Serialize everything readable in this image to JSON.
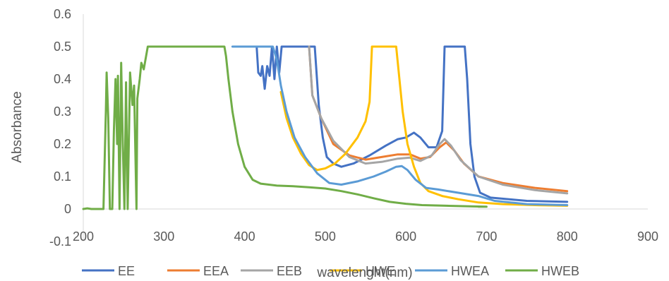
{
  "chart_data": {
    "type": "line",
    "xlabel": "wavelenght(nm)",
    "ylabel": "Absorbance",
    "xlim": [
      200,
      900
    ],
    "ylim": [
      -0.1,
      0.6
    ],
    "x_ticks": [
      200,
      300,
      400,
      500,
      600,
      700,
      800,
      900
    ],
    "y_ticks": [
      -0.1,
      0,
      0.1,
      0.2,
      0.3,
      0.4,
      0.5,
      0.6
    ],
    "grid": false,
    "legend_position": "bottom",
    "series": [
      {
        "name": "EE",
        "color": "#4472C4",
        "points": [
          [
            415,
            0.5
          ],
          [
            417,
            0.42
          ],
          [
            420,
            0.41
          ],
          [
            422,
            0.44
          ],
          [
            425,
            0.37
          ],
          [
            428,
            0.44
          ],
          [
            431,
            0.41
          ],
          [
            434,
            0.5
          ],
          [
            437,
            0.4
          ],
          [
            440,
            0.5
          ],
          [
            443,
            0.42
          ],
          [
            446,
            0.5
          ],
          [
            480,
            0.5
          ],
          [
            487,
            0.5
          ],
          [
            492,
            0.32
          ],
          [
            497,
            0.22
          ],
          [
            502,
            0.16
          ],
          [
            510,
            0.14
          ],
          [
            520,
            0.13
          ],
          [
            535,
            0.14
          ],
          [
            555,
            0.165
          ],
          [
            575,
            0.195
          ],
          [
            590,
            0.215
          ],
          [
            600,
            0.22
          ],
          [
            610,
            0.235
          ],
          [
            618,
            0.22
          ],
          [
            628,
            0.19
          ],
          [
            638,
            0.19
          ],
          [
            645,
            0.24
          ],
          [
            648,
            0.5
          ],
          [
            673,
            0.5
          ],
          [
            676,
            0.4
          ],
          [
            680,
            0.2
          ],
          [
            685,
            0.1
          ],
          [
            692,
            0.05
          ],
          [
            705,
            0.035
          ],
          [
            750,
            0.025
          ],
          [
            800,
            0.022
          ]
        ]
      },
      {
        "name": "EEA",
        "color": "#ED7D31",
        "points": [
          [
            480,
            0.5
          ],
          [
            484,
            0.35
          ],
          [
            495,
            0.28
          ],
          [
            510,
            0.2
          ],
          [
            530,
            0.165
          ],
          [
            550,
            0.152
          ],
          [
            570,
            0.16
          ],
          [
            590,
            0.168
          ],
          [
            605,
            0.168
          ],
          [
            618,
            0.155
          ],
          [
            630,
            0.16
          ],
          [
            642,
            0.19
          ],
          [
            650,
            0.205
          ],
          [
            660,
            0.18
          ],
          [
            672,
            0.14
          ],
          [
            690,
            0.1
          ],
          [
            720,
            0.08
          ],
          [
            760,
            0.065
          ],
          [
            800,
            0.055
          ]
        ]
      },
      {
        "name": "EEB",
        "color": "#A5A5A5",
        "points": [
          [
            480,
            0.5
          ],
          [
            484,
            0.35
          ],
          [
            495,
            0.28
          ],
          [
            510,
            0.21
          ],
          [
            530,
            0.16
          ],
          [
            550,
            0.14
          ],
          [
            570,
            0.145
          ],
          [
            590,
            0.155
          ],
          [
            605,
            0.158
          ],
          [
            618,
            0.148
          ],
          [
            632,
            0.165
          ],
          [
            642,
            0.2
          ],
          [
            648,
            0.215
          ],
          [
            656,
            0.195
          ],
          [
            668,
            0.15
          ],
          [
            690,
            0.1
          ],
          [
            720,
            0.075
          ],
          [
            760,
            0.058
          ],
          [
            800,
            0.048
          ]
        ]
      },
      {
        "name": "HWE",
        "color": "#FFC000",
        "points": [
          [
            445,
            0.36
          ],
          [
            452,
            0.28
          ],
          [
            460,
            0.22
          ],
          [
            470,
            0.17
          ],
          [
            480,
            0.135
          ],
          [
            490,
            0.12
          ],
          [
            500,
            0.125
          ],
          [
            512,
            0.14
          ],
          [
            525,
            0.17
          ],
          [
            540,
            0.22
          ],
          [
            550,
            0.27
          ],
          [
            555,
            0.33
          ],
          [
            558,
            0.5
          ],
          [
            583,
            0.5
          ],
          [
            588,
            0.5
          ],
          [
            592,
            0.4
          ],
          [
            596,
            0.3
          ],
          [
            602,
            0.2
          ],
          [
            610,
            0.13
          ],
          [
            618,
            0.08
          ],
          [
            628,
            0.055
          ],
          [
            645,
            0.04
          ],
          [
            665,
            0.03
          ],
          [
            690,
            0.02
          ],
          [
            720,
            0.015
          ],
          [
            760,
            0.012
          ],
          [
            800,
            0.01
          ]
        ]
      },
      {
        "name": "HWEA",
        "color": "#5B9BD5",
        "points": [
          [
            385,
            0.5
          ],
          [
            435,
            0.5
          ],
          [
            440,
            0.46
          ],
          [
            445,
            0.38
          ],
          [
            452,
            0.3
          ],
          [
            462,
            0.22
          ],
          [
            475,
            0.16
          ],
          [
            490,
            0.11
          ],
          [
            505,
            0.08
          ],
          [
            520,
            0.075
          ],
          [
            540,
            0.085
          ],
          [
            560,
            0.1
          ],
          [
            575,
            0.115
          ],
          [
            588,
            0.13
          ],
          [
            595,
            0.132
          ],
          [
            602,
            0.12
          ],
          [
            612,
            0.09
          ],
          [
            625,
            0.065
          ],
          [
            640,
            0.06
          ],
          [
            665,
            0.05
          ],
          [
            690,
            0.04
          ],
          [
            710,
            0.025
          ],
          [
            750,
            0.015
          ],
          [
            800,
            0.012
          ]
        ]
      },
      {
        "name": "HWEB",
        "color": "#70AD47",
        "points": [
          [
            200,
            0.0
          ],
          [
            205,
            0.002
          ],
          [
            210,
            0.0
          ],
          [
            225,
            0.0
          ],
          [
            228,
            0.3
          ],
          [
            229,
            0.42
          ],
          [
            231,
            0.28
          ],
          [
            233,
            0.0
          ],
          [
            236,
            0.0
          ],
          [
            238,
            0.24
          ],
          [
            240,
            0.4
          ],
          [
            242,
            0.2
          ],
          [
            243,
            0.41
          ],
          [
            245,
            0.0
          ],
          [
            247,
            0.45
          ],
          [
            249,
            0.2
          ],
          [
            251,
            0.0
          ],
          [
            253,
            0.39
          ],
          [
            255,
            0.0
          ],
          [
            258,
            0.42
          ],
          [
            261,
            0.32
          ],
          [
            263,
            0.38
          ],
          [
            266,
            0.0
          ],
          [
            267,
            0.34
          ],
          [
            270,
            0.4
          ],
          [
            272,
            0.45
          ],
          [
            275,
            0.43
          ],
          [
            280,
            0.5
          ],
          [
            300,
            0.5
          ],
          [
            375,
            0.5
          ],
          [
            377,
            0.47
          ],
          [
            380,
            0.4
          ],
          [
            385,
            0.3
          ],
          [
            392,
            0.2
          ],
          [
            400,
            0.13
          ],
          [
            410,
            0.09
          ],
          [
            420,
            0.078
          ],
          [
            440,
            0.072
          ],
          [
            460,
            0.07
          ],
          [
            480,
            0.067
          ],
          [
            500,
            0.063
          ],
          [
            520,
            0.055
          ],
          [
            540,
            0.045
          ],
          [
            560,
            0.033
          ],
          [
            580,
            0.022
          ],
          [
            600,
            0.016
          ],
          [
            620,
            0.012
          ],
          [
            650,
            0.01
          ],
          [
            680,
            0.008
          ],
          [
            700,
            0.007
          ],
          [
            690,
            0.007
          ]
        ]
      }
    ]
  }
}
